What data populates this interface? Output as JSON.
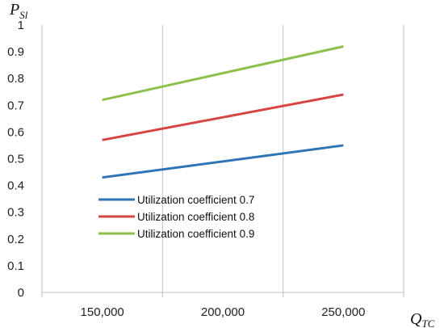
{
  "chart_data": {
    "type": "line",
    "x": [
      150000,
      250000
    ],
    "x_tick_values": [
      150000,
      200000,
      250000
    ],
    "x_tick_labels": [
      "150,000",
      "200,000",
      "250,000"
    ],
    "y_tick_values": [
      0,
      0.1,
      0.2,
      0.3,
      0.4,
      0.5,
      0.6,
      0.7,
      0.8,
      0.9,
      1
    ],
    "y_tick_labels": [
      "0",
      "0.1",
      "0.2",
      "0.3",
      "0.4",
      "0.5",
      "0.6",
      "0.7",
      "0.8",
      "0.9",
      "1"
    ],
    "ylim": [
      0,
      1
    ],
    "xlim": [
      125000,
      275000
    ],
    "xlabel_main": "Q",
    "xlabel_sub": "TC",
    "ylabel_main": "P",
    "ylabel_sub": "Sl",
    "grid": "vertical",
    "legend_position": "center-left",
    "series": [
      {
        "name": "Utilization coefficient 0.7",
        "color": "#2e75b6",
        "values": [
          0.43,
          0.55
        ]
      },
      {
        "name": "Utilization coefficient 0.8",
        "color": "#d64541",
        "values": [
          0.57,
          0.74
        ]
      },
      {
        "name": "Utilization coefficient 0.9",
        "color": "#8cc04b",
        "values": [
          0.72,
          0.92
        ]
      }
    ]
  }
}
